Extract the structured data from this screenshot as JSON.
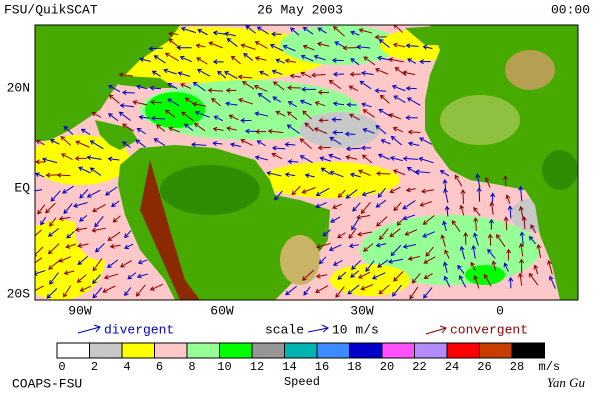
{
  "header": {
    "left": "FSU/QuikSCAT",
    "center": "26 May 2003",
    "right": "00:00"
  },
  "map": {
    "lat_labels": [
      "20N",
      "EQ",
      "20S"
    ],
    "lon_labels": [
      "90W",
      "60W",
      "30W",
      "0"
    ]
  },
  "legend": {
    "divergent": "divergent",
    "scale": "scale",
    "scale_value": "10 m/s",
    "convergent": "convergent"
  },
  "colorbar": {
    "ticks": [
      0,
      2,
      4,
      6,
      8,
      10,
      12,
      14,
      16,
      18,
      20,
      22,
      24,
      26,
      28
    ],
    "unit": "m/s",
    "label": "Speed",
    "colors": [
      "#ffffff",
      "#c8c8c8",
      "#ffff00",
      "#ffc8c8",
      "#96ff96",
      "#00ff00",
      "#969696",
      "#00b4b4",
      "#3c8cff",
      "#0000c8",
      "#ff50ff",
      "#b48cff",
      "#ff0000",
      "#c83c00",
      "#000000"
    ]
  },
  "footer": {
    "left": "COAPS-FSU",
    "right": "Yan Gu"
  }
}
